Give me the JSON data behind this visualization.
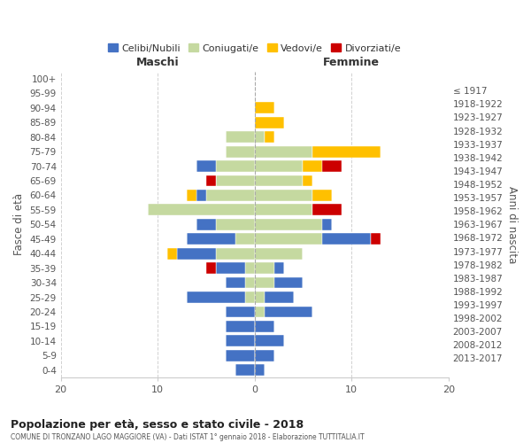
{
  "age_groups": [
    "0-4",
    "5-9",
    "10-14",
    "15-19",
    "20-24",
    "25-29",
    "30-34",
    "35-39",
    "40-44",
    "45-49",
    "50-54",
    "55-59",
    "60-64",
    "65-69",
    "70-74",
    "75-79",
    "80-84",
    "85-89",
    "90-94",
    "95-99",
    "100+"
  ],
  "birth_years": [
    "2013-2017",
    "2008-2012",
    "2003-2007",
    "1998-2002",
    "1993-1997",
    "1988-1992",
    "1983-1987",
    "1978-1982",
    "1973-1977",
    "1968-1972",
    "1963-1967",
    "1958-1962",
    "1953-1957",
    "1948-1952",
    "1943-1947",
    "1938-1942",
    "1933-1937",
    "1928-1932",
    "1923-1927",
    "1918-1922",
    "≤ 1917"
  ],
  "males": {
    "celibi": [
      2,
      3,
      3,
      3,
      3,
      6,
      2,
      3,
      4,
      5,
      2,
      0,
      1,
      0,
      2,
      0,
      0,
      0,
      0,
      0,
      0
    ],
    "coniugati": [
      0,
      0,
      0,
      0,
      0,
      1,
      1,
      1,
      4,
      2,
      4,
      11,
      5,
      4,
      4,
      3,
      3,
      0,
      0,
      0,
      0
    ],
    "vedovi": [
      0,
      0,
      0,
      0,
      0,
      0,
      0,
      0,
      1,
      0,
      0,
      0,
      1,
      0,
      0,
      0,
      0,
      0,
      0,
      0,
      0
    ],
    "divorziati": [
      0,
      0,
      0,
      0,
      0,
      0,
      0,
      1,
      0,
      0,
      0,
      0,
      0,
      1,
      0,
      0,
      0,
      0,
      0,
      0,
      0
    ]
  },
  "females": {
    "celibi": [
      1,
      2,
      3,
      2,
      5,
      3,
      3,
      1,
      0,
      5,
      1,
      0,
      0,
      0,
      0,
      0,
      0,
      0,
      0,
      0,
      0
    ],
    "coniugati": [
      0,
      0,
      0,
      0,
      1,
      1,
      2,
      2,
      5,
      7,
      7,
      6,
      6,
      5,
      5,
      6,
      1,
      0,
      0,
      0,
      0
    ],
    "vedovi": [
      0,
      0,
      0,
      0,
      0,
      0,
      0,
      0,
      0,
      0,
      0,
      0,
      2,
      1,
      2,
      7,
      1,
      3,
      2,
      0,
      0
    ],
    "divorziati": [
      0,
      0,
      0,
      0,
      0,
      0,
      0,
      0,
      0,
      1,
      0,
      3,
      0,
      0,
      2,
      0,
      0,
      0,
      0,
      0,
      0
    ]
  },
  "colors": {
    "celibi": "#4472c4",
    "coniugati": "#c5d9a0",
    "vedovi": "#ffc000",
    "divorziati": "#cc0000"
  },
  "xlim": 20,
  "title_main": "Popolazione per età, sesso e stato civile - 2018",
  "title_sub": "COMUNE DI TRONZANO LAGO MAGGIORE (VA) - Dati ISTAT 1° gennaio 2018 - Elaborazione TUTTITALIA.IT",
  "ylabel_left": "Fasce di età",
  "ylabel_right": "Anni di nascita",
  "xlabel_left": "Maschi",
  "xlabel_right": "Femmine",
  "legend_labels": [
    "Celibi/Nubili",
    "Coniugati/e",
    "Vedovi/e",
    "Divorziati/e"
  ],
  "background_color": "#ffffff",
  "grid_color": "#cccccc"
}
